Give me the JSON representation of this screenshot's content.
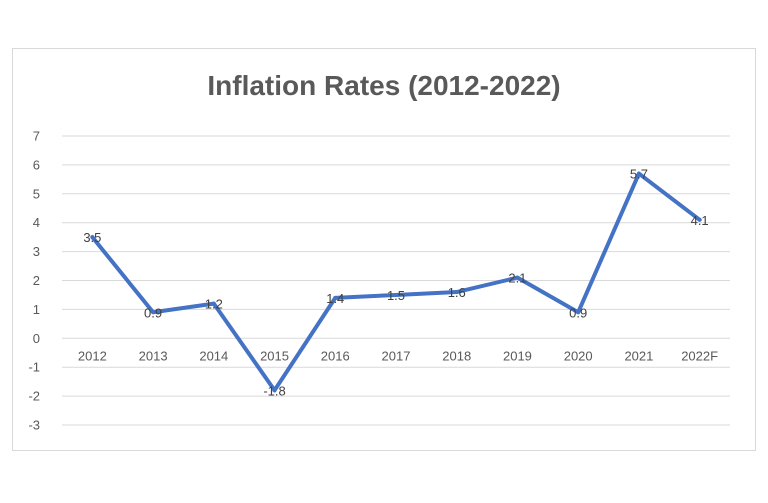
{
  "chart_data": {
    "type": "line",
    "title": "Inflation Rates (2012-2022)",
    "xlabel": "",
    "ylabel": "",
    "categories": [
      "2012",
      "2013",
      "2014",
      "2015",
      "2016",
      "2017",
      "2018",
      "2019",
      "2020",
      "2021",
      "2022F"
    ],
    "series": [
      {
        "values": [
          3.5,
          0.9,
          1.2,
          -1.8,
          1.4,
          1.5,
          1.6,
          2.1,
          0.9,
          5.7,
          4.1
        ],
        "color": "#4472c4"
      }
    ],
    "data_labels": [
      "3.5",
      "0.9",
      "1.2",
      "-1.8",
      "1.4",
      "1.5",
      "1.6",
      "2.1",
      "0.9",
      "5.7",
      "4.1"
    ],
    "y_ticks": [
      "7",
      "6",
      "5",
      "4",
      "3",
      "2",
      "1",
      "0",
      "-1",
      "-2",
      "-3"
    ],
    "ylim": [
      -3,
      7
    ],
    "grid": true,
    "gridline_color": "#d9d9d9",
    "legend": "none"
  }
}
